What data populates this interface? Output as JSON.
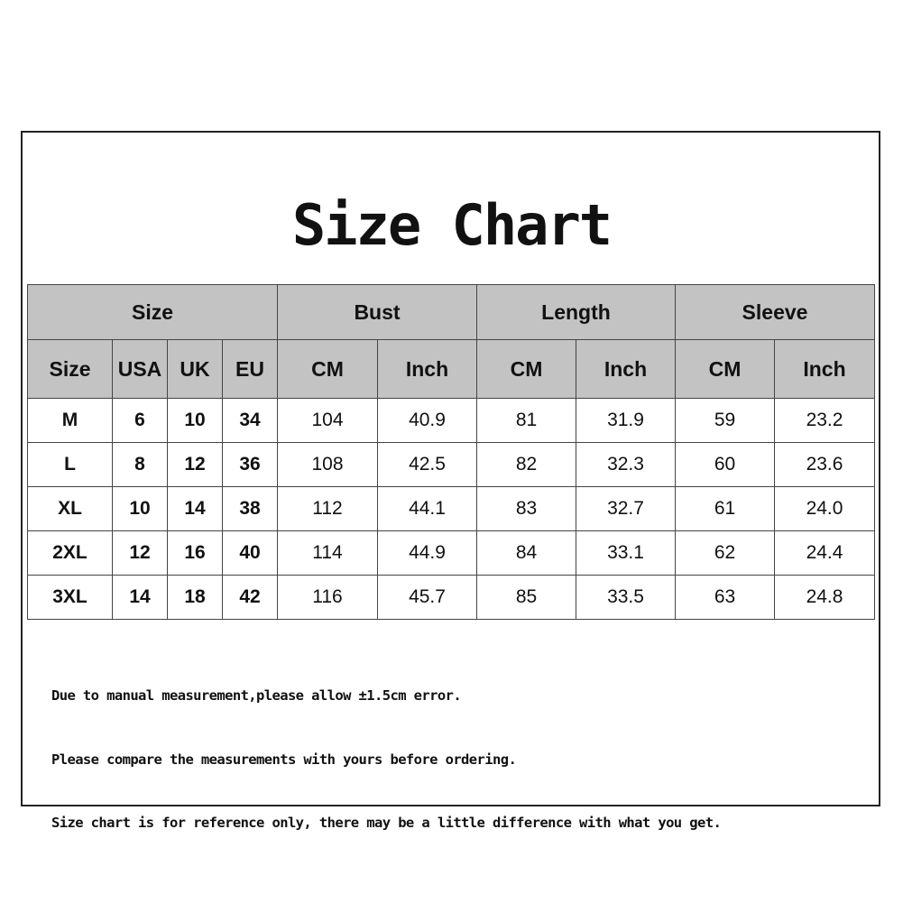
{
  "title": "Size Chart",
  "groups": [
    "Size",
    "Bust",
    "Length",
    "Sleeve"
  ],
  "subheaders": [
    "Size",
    "USA",
    "UK",
    "EU",
    "CM",
    "Inch",
    "CM",
    "Inch",
    "CM",
    "Inch"
  ],
  "rows": [
    [
      "M",
      "6",
      "10",
      "34",
      "104",
      "40.9",
      "81",
      "31.9",
      "59",
      "23.2"
    ],
    [
      "L",
      "8",
      "12",
      "36",
      "108",
      "42.5",
      "82",
      "32.3",
      "60",
      "23.6"
    ],
    [
      "XL",
      "10",
      "14",
      "38",
      "112",
      "44.1",
      "83",
      "32.7",
      "61",
      "24.0"
    ],
    [
      "2XL",
      "12",
      "16",
      "40",
      "114",
      "44.9",
      "84",
      "33.1",
      "62",
      "24.4"
    ],
    [
      "3XL",
      "14",
      "18",
      "42",
      "116",
      "45.7",
      "85",
      "33.5",
      "63",
      "24.8"
    ]
  ],
  "notes": [
    "Due to manual measurement,please allow ±1.5cm error.",
    "Please compare the measurements with yours before ordering.",
    "Size chart is for reference only, there may be a little difference with what you get."
  ],
  "colors": {
    "header_bg": "#c3c3c3",
    "border": "#444444"
  }
}
